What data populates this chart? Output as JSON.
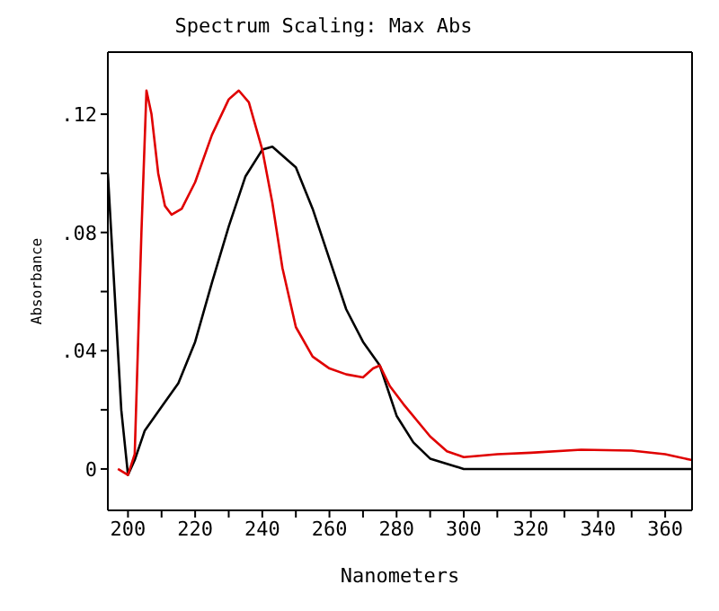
{
  "chart_data": {
    "type": "line",
    "title": "Spectrum Scaling: Max Abs",
    "xlabel": "Nanometers",
    "ylabel": "Absorbance",
    "xlim": [
      194,
      368
    ],
    "ylim": [
      -0.014,
      0.141
    ],
    "xticks": [
      200,
      {
        "value": 210,
        "label": null
      },
      220,
      {
        "value": 230,
        "label": null
      },
      240,
      {
        "value": 250,
        "label": null
      },
      260,
      {
        "value": 270,
        "label": null
      },
      280,
      {
        "value": 290,
        "label": null
      },
      300,
      {
        "value": 310,
        "label": null
      },
      320,
      {
        "value": 330,
        "label": null
      },
      340,
      {
        "value": 350,
        "label": null
      },
      360
    ],
    "yticks": [
      {
        "value": 0,
        "label": "0"
      },
      {
        "value": 0.02,
        "label": null
      },
      {
        "value": 0.04,
        "label": ".04"
      },
      {
        "value": 0.06,
        "label": null
      },
      {
        "value": 0.08,
        "label": ".08"
      },
      {
        "value": 0.1,
        "label": null
      },
      {
        "value": 0.12,
        "label": ".12"
      }
    ],
    "marker": "none",
    "line_style": "solid",
    "series": [
      {
        "color": "#000000",
        "x": [
          194,
          196,
          198,
          200,
          202,
          205,
          210,
          215,
          220,
          225,
          230,
          235,
          240,
          243,
          250,
          255,
          260,
          265,
          270,
          275,
          280,
          285,
          290,
          300,
          320,
          340,
          368
        ],
        "values": [
          0.1,
          0.06,
          0.02,
          -0.002,
          0.003,
          0.013,
          0.021,
          0.029,
          0.043,
          0.063,
          0.082,
          0.099,
          0.108,
          0.109,
          0.102,
          0.088,
          0.071,
          0.054,
          0.043,
          0.035,
          0.018,
          0.009,
          0.0035,
          0,
          0,
          0,
          0
        ]
      },
      {
        "color": "#e00000",
        "x": [
          197,
          200,
          202,
          204,
          205.5,
          207,
          209,
          211,
          213,
          216,
          220,
          225,
          230,
          233,
          236,
          240,
          243,
          246,
          250,
          255,
          260,
          265,
          270,
          273,
          275,
          278,
          282,
          290,
          295,
          300,
          310,
          320,
          335,
          350,
          360,
          368
        ],
        "values": [
          0,
          -0.002,
          0.005,
          0.08,
          0.128,
          0.12,
          0.1,
          0.089,
          0.086,
          0.088,
          0.097,
          0.113,
          0.125,
          0.128,
          0.124,
          0.108,
          0.09,
          0.068,
          0.048,
          0.038,
          0.034,
          0.032,
          0.031,
          0.034,
          0.035,
          0.028,
          0.022,
          0.011,
          0.006,
          0.004,
          0.005,
          0.0055,
          0.0065,
          0.0062,
          0.005,
          0.003
        ]
      }
    ]
  }
}
